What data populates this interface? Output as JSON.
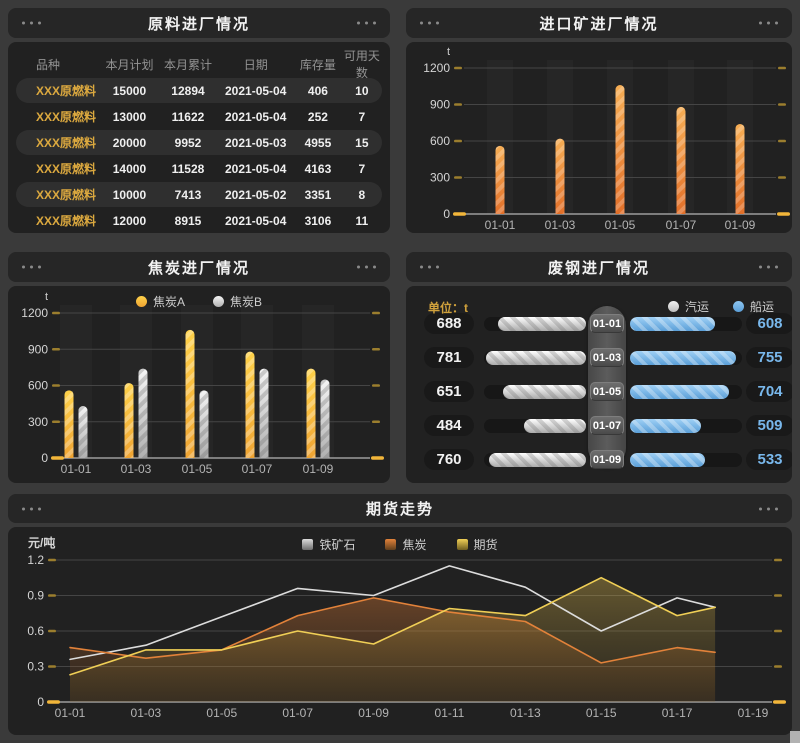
{
  "page": {
    "bg": "#3a3a3a",
    "panel_bg": "#212121",
    "header_bg": "#262626",
    "accent_gold": "#d9a440",
    "tick_yellow": "#9b7e2e",
    "tick_bright": "#f2b63a"
  },
  "panels": {
    "materials": {
      "title": "原料进厂情况",
      "table": {
        "headers": [
          "品种",
          "本月计划",
          "本月累计",
          "日期",
          "库存量",
          "可用天数"
        ],
        "rows": [
          [
            "XXX原燃料",
            "15000",
            "12894",
            "2021-05-04",
            "406",
            "10"
          ],
          [
            "XXX原燃料",
            "13000",
            "11622",
            "2021-05-04",
            "252",
            "7"
          ],
          [
            "XXX原燃料",
            "20000",
            "9952",
            "2021-05-03",
            "4955",
            "15"
          ],
          [
            "XXX原燃料",
            "14000",
            "11528",
            "2021-05-04",
            "4163",
            "7"
          ],
          [
            "XXX原燃料",
            "10000",
            "7413",
            "2021-05-02",
            "3351",
            "8"
          ],
          [
            "XXX原燃料",
            "12000",
            "8915",
            "2021-05-04",
            "3106",
            "11"
          ]
        ]
      }
    },
    "imported_ore": {
      "title": "进口矿进厂情况",
      "unit": "t"
    },
    "coke": {
      "title": "焦炭进厂情况",
      "unit": "t"
    },
    "scrap": {
      "title": "废钢进厂情况",
      "unit_label": "单位：t"
    },
    "futures": {
      "title": "期货走势",
      "unit": "元/吨"
    }
  },
  "chart_data": [
    {
      "id": "imported_ore",
      "type": "bar",
      "title": "进口矿进厂情况",
      "ylabel": "t",
      "ylim": [
        0,
        1200
      ],
      "yticks": [
        0,
        300,
        600,
        900,
        1200
      ],
      "grid": true,
      "categories": [
        "01-01",
        "01-03",
        "01-05",
        "01-07",
        "01-09"
      ],
      "values": [
        560,
        620,
        1060,
        880,
        740
      ],
      "bar_color_top": "#f6ae55",
      "bar_color_bottom": "#e2702a"
    },
    {
      "id": "coke",
      "type": "bar",
      "title": "焦炭进厂情况",
      "ylabel": "t",
      "ylim": [
        0,
        1200
      ],
      "yticks": [
        0,
        300,
        600,
        900,
        1200
      ],
      "grid": true,
      "legend_position": "top",
      "categories": [
        "01-01",
        "01-03",
        "01-05",
        "01-07",
        "01-09"
      ],
      "series": [
        {
          "name": "焦炭A",
          "color": "#ffd24a",
          "color2": "#efa433",
          "values": [
            560,
            620,
            1060,
            880,
            740
          ]
        },
        {
          "name": "焦炭B",
          "color": "#f5f5f5",
          "color2": "#b0b0b0",
          "values": [
            430,
            740,
            560,
            740,
            650
          ]
        }
      ]
    },
    {
      "id": "scrap",
      "type": "bar",
      "orientation": "horizontal-diverging",
      "title": "废钢进厂情况",
      "unit": "t",
      "xmax": 800,
      "categories": [
        "01-01",
        "01-03",
        "01-05",
        "01-07",
        "01-09"
      ],
      "series": [
        {
          "name": "汽运",
          "color": "#f2f2f2",
          "color2": "#bdbdbd",
          "values": [
            688,
            781,
            651,
            484,
            760
          ]
        },
        {
          "name": "船运",
          "color": "#8ec5f0",
          "color2": "#5b9fd8",
          "values": [
            608,
            755,
            704,
            509,
            533
          ]
        }
      ]
    },
    {
      "id": "futures",
      "type": "line",
      "title": "期货走势",
      "ylabel": "元/吨",
      "ylim": [
        0,
        1.2
      ],
      "yticks": [
        0,
        0.3,
        0.6,
        0.9,
        1.2
      ],
      "grid": true,
      "legend_position": "top",
      "x_days": [
        1,
        3,
        5,
        7,
        9,
        11,
        13,
        15,
        17,
        18
      ],
      "xticks": [
        "01-01",
        "01-03",
        "01-05",
        "01-07",
        "01-09",
        "01-11",
        "01-13",
        "01-15",
        "01-17",
        "01-19"
      ],
      "series": [
        {
          "name": "铁矿石",
          "color": "#dcdcdc",
          "marker2": "#6e6e6e",
          "area": false,
          "values": [
            0.36,
            0.48,
            0.72,
            0.96,
            0.9,
            1.15,
            0.97,
            0.6,
            0.88,
            0.8
          ]
        },
        {
          "name": "焦炭",
          "color": "#e2823a",
          "marker2": "#5f3e1c",
          "area": true,
          "values": [
            0.46,
            0.37,
            0.44,
            0.73,
            0.88,
            0.76,
            0.68,
            0.33,
            0.46,
            0.42
          ]
        },
        {
          "name": "期货",
          "color": "#f0cf56",
          "marker2": "#6f5d20",
          "area": true,
          "values": [
            0.23,
            0.44,
            0.44,
            0.6,
            0.49,
            0.79,
            0.73,
            1.05,
            0.73,
            0.8
          ]
        }
      ]
    }
  ]
}
